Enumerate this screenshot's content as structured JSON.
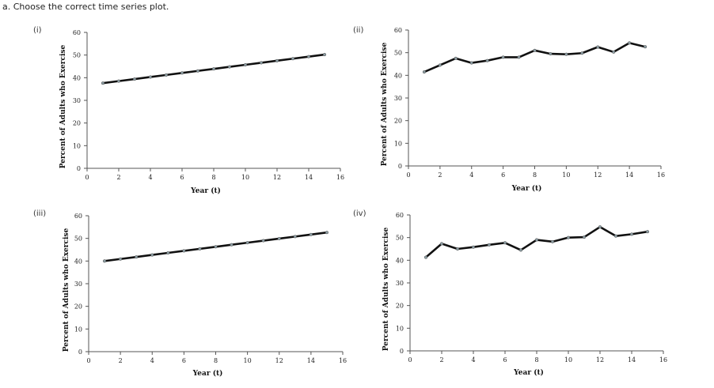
{
  "question": "a. Choose the correct time series plot.",
  "option_labels": [
    "(i)",
    "(ii)",
    "(iii)",
    "(iv)"
  ],
  "chart_data": [
    {
      "type": "line",
      "option": "(i)",
      "title": "",
      "xlabel": "Year (t)",
      "ylabel": "Percent of Adults who Exercise",
      "xlim": [
        0,
        16
      ],
      "ylim": [
        0,
        60
      ],
      "xticks": [
        0,
        2,
        4,
        6,
        8,
        10,
        12,
        14,
        16
      ],
      "yticks": [
        0,
        10,
        20,
        30,
        40,
        50,
        60
      ],
      "x": [
        1,
        2,
        3,
        4,
        5,
        6,
        7,
        8,
        9,
        10,
        11,
        12,
        13,
        14,
        15
      ],
      "values": [
        37.6,
        38.5,
        39.4,
        40.3,
        41.2,
        42.1,
        43.0,
        43.9,
        44.8,
        45.7,
        46.6,
        47.5,
        48.4,
        49.3,
        50.2
      ]
    },
    {
      "type": "line",
      "option": "(ii)",
      "title": "",
      "xlabel": "Year (t)",
      "ylabel": "Percent of Adults who Exercise",
      "xlim": [
        0,
        16
      ],
      "ylim": [
        0,
        60
      ],
      "xticks": [
        0,
        2,
        4,
        6,
        8,
        10,
        12,
        14,
        16
      ],
      "yticks": [
        0,
        10,
        20,
        30,
        40,
        50,
        60
      ],
      "x": [
        1,
        2,
        3,
        4,
        5,
        6,
        7,
        8,
        9,
        10,
        11,
        12,
        13,
        14,
        15
      ],
      "values": [
        41.5,
        44.5,
        47.5,
        45.5,
        46.5,
        48.0,
        48.0,
        51.0,
        49.5,
        49.3,
        49.8,
        52.5,
        50.3,
        54.3,
        52.6
      ]
    },
    {
      "type": "line",
      "option": "(iii)",
      "title": "",
      "xlabel": "Year (t)",
      "ylabel": "Percent of Adults who Exercise",
      "xlim": [
        0,
        16
      ],
      "ylim": [
        0,
        60
      ],
      "xticks": [
        0,
        2,
        4,
        6,
        8,
        10,
        12,
        14,
        16
      ],
      "yticks": [
        0,
        10,
        20,
        30,
        40,
        50,
        60
      ],
      "x": [
        1,
        2,
        3,
        4,
        5,
        6,
        7,
        8,
        9,
        10,
        11,
        12,
        13,
        14,
        15
      ],
      "values": [
        40.0,
        40.9,
        41.8,
        42.7,
        43.6,
        44.5,
        45.4,
        46.3,
        47.2,
        48.1,
        49.0,
        49.9,
        50.8,
        51.7,
        52.6
      ]
    },
    {
      "type": "line",
      "option": "(iv)",
      "title": "",
      "xlabel": "Year (t)",
      "ylabel": "Percent of Adults who Exercise",
      "xlim": [
        0,
        16
      ],
      "ylim": [
        0,
        60
      ],
      "xticks": [
        0,
        2,
        4,
        6,
        8,
        10,
        12,
        14,
        16
      ],
      "yticks": [
        0,
        10,
        20,
        30,
        40,
        50,
        60
      ],
      "x": [
        1,
        2,
        3,
        4,
        5,
        6,
        7,
        8,
        9,
        10,
        11,
        12,
        13,
        14,
        15
      ],
      "values": [
        41.3,
        47.3,
        45.0,
        45.8,
        46.8,
        47.7,
        44.5,
        49.0,
        48.2,
        50.0,
        50.2,
        54.7,
        50.7,
        51.5,
        52.6
      ]
    }
  ]
}
